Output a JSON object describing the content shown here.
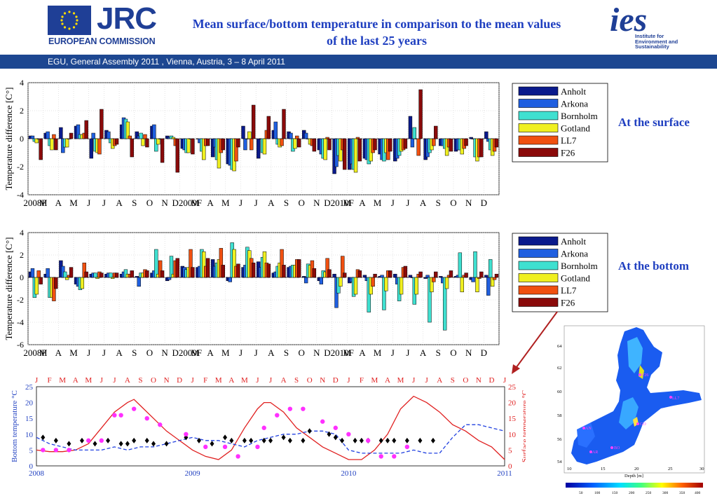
{
  "header": {
    "jrc_logo_text": "JRC",
    "jrc_subtext": "EUROPEAN COMMISSION",
    "title_line1": "Mean surface/bottom temperature in comparison to the mean values",
    "title_line2": "of the last 25 years",
    "ies_logo_text": "ies",
    "ies_subtext": [
      "Institute for",
      "Environment and",
      "Sustainability"
    ],
    "banner": "EGU, General Assembly 2011 , Vienna, Austria, 3 – 8 April 2011"
  },
  "labels": {
    "surface": "At the surface",
    "bottom": "At the bottom"
  },
  "colors": {
    "banner": "#1d4791",
    "title": "#1f3fc0",
    "series": [
      "#0a1a8c",
      "#1f5fe0",
      "#3fe0d0",
      "#f0f020",
      "#f05010",
      "#8a0a0a"
    ]
  },
  "chart_data": [
    {
      "type": "bar",
      "ylabel": "Temperature difference [C°]",
      "ylim": [
        -4,
        4
      ],
      "yticks": [
        -4,
        -2,
        0,
        2,
        4
      ],
      "categories": [
        "2008F",
        "M",
        "A",
        "M",
        "J",
        "J",
        "A",
        "S",
        "O",
        "N",
        "D2009F",
        "M",
        "A",
        "M",
        "J",
        "J",
        "A",
        "S",
        "O",
        "N",
        "D2010F",
        "M",
        "A",
        "M",
        "J",
        "J",
        "A",
        "S",
        "O",
        "N",
        "D"
      ],
      "grid": true,
      "legend_position": "right",
      "series": [
        {
          "name": "Anholt",
          "values": [
            0.2,
            0.4,
            0.8,
            0.9,
            -1.4,
            0.6,
            1.0,
            0.5,
            0.9,
            0.2,
            -0.7,
            0.0,
            -1.3,
            -1.8,
            0.9,
            -1.4,
            0.6,
            0.5,
            0.6,
            -0.8,
            -2.5,
            -2.2,
            -1.4,
            -1.1,
            -1.6,
            1.6,
            -1.5,
            -0.5,
            -0.9,
            0.1,
            0.5
          ]
        },
        {
          "name": "Arkona",
          "values": [
            0.2,
            0.5,
            -1.0,
            1.0,
            0.4,
            0.5,
            1.5,
            0.2,
            1.0,
            0.1,
            -0.8,
            -0.3,
            -0.6,
            -1.9,
            -0.8,
            0.0,
            1.2,
            0.4,
            0.4,
            -1.1,
            -2.0,
            -1.8,
            -1.5,
            -1.5,
            -1.4,
            -0.6,
            -1.3,
            -0.5,
            -0.8,
            0.0,
            -0.2
          ]
        },
        {
          "name": "Bornholm",
          "values": [
            -0.2,
            -0.5,
            -0.6,
            0.3,
            -0.9,
            -0.3,
            1.4,
            0.4,
            -0.9,
            0.2,
            -1.0,
            -0.9,
            -1.5,
            -2.2,
            0.0,
            -1.0,
            -0.4,
            -0.9,
            0.0,
            -1.4,
            -1.2,
            -2.2,
            -1.8,
            -1.6,
            -1.2,
            0.8,
            -1.0,
            -0.7,
            -0.8,
            -1.3,
            -0.8
          ]
        },
        {
          "name": "Gotland",
          "values": [
            -0.3,
            -0.8,
            -0.6,
            0.3,
            -1.0,
            -0.7,
            1.2,
            -0.5,
            -0.4,
            0.1,
            -1.0,
            -1.5,
            -2.1,
            -2.3,
            0.5,
            -1.1,
            -0.6,
            -0.7,
            -0.4,
            -1.5,
            -1.6,
            -2.4,
            -1.6,
            -1.0,
            -0.9,
            0.0,
            -0.8,
            -1.2,
            -1.1,
            -1.6,
            -1.2
          ]
        },
        {
          "name": "LL7",
          "values": [
            0.0,
            0.3,
            0.0,
            0.4,
            -1.1,
            -0.5,
            0.2,
            0.3,
            0.0,
            -0.5,
            0.0,
            -0.5,
            -1.0,
            -1.6,
            -0.8,
            0.6,
            -0.5,
            0.2,
            -0.5,
            0.1,
            -0.8,
            0.1,
            -1.0,
            -1.5,
            -0.8,
            -1.2,
            -0.5,
            -0.6,
            -0.7,
            -1.3,
            -0.9
          ]
        },
        {
          "name": "F26",
          "values": [
            -1.5,
            -0.8,
            0.4,
            1.3,
            2.1,
            -0.4,
            -1.3,
            -0.6,
            -1.7,
            -2.4,
            -1.1,
            -0.5,
            -0.8,
            -0.6,
            2.4,
            1.6,
            2.1,
            -0.6,
            -0.9,
            -0.8,
            -2.2,
            -1.6,
            -0.8,
            -0.9,
            -0.7,
            3.5,
            0.9,
            -0.9,
            -0.5,
            -1.3,
            -0.6
          ]
        }
      ]
    },
    {
      "type": "bar",
      "ylabel": "Temperature difference [C°]",
      "ylim": [
        -6,
        4
      ],
      "yticks": [
        -6,
        -4,
        -2,
        0,
        2,
        4
      ],
      "categories": [
        "2008F",
        "M",
        "A",
        "M",
        "J",
        "J",
        "A",
        "S",
        "O",
        "N",
        "D2009F",
        "M",
        "A",
        "M",
        "J",
        "J",
        "A",
        "S",
        "O",
        "N",
        "D2010F",
        "M",
        "A",
        "M",
        "J",
        "J",
        "A",
        "S",
        "O",
        "N",
        "D"
      ],
      "grid": true,
      "legend_position": "right",
      "series": [
        {
          "name": "Anholt",
          "values": [
            0.5,
            0.3,
            1.5,
            -0.6,
            0.3,
            0.3,
            0.3,
            0.1,
            0.4,
            -0.3,
            1.0,
            0.9,
            1.6,
            -0.3,
            0.9,
            1.4,
            0.4,
            0.9,
            0.1,
            -0.3,
            0.3,
            -0.5,
            0.2,
            0.1,
            0.3,
            0.2,
            -0.1,
            0.1,
            0.1,
            -0.2,
            0.2
          ]
        },
        {
          "name": "Arkona",
          "values": [
            0.8,
            0.8,
            1.0,
            -0.8,
            0.4,
            0.4,
            0.5,
            -0.8,
            0.6,
            -0.2,
            0.9,
            1.0,
            1.0,
            -0.4,
            1.1,
            0.9,
            0.5,
            1.0,
            -0.5,
            -0.6,
            -2.7,
            -0.4,
            -0.3,
            0.2,
            -0.6,
            0.0,
            0.2,
            -0.5,
            0.2,
            -0.4,
            -1.6
          ]
        },
        {
          "name": "Bornholm",
          "values": [
            -1.8,
            -1.8,
            0.5,
            -1.1,
            0.4,
            0.4,
            0.7,
            0.4,
            2.5,
            1.9,
            0.7,
            2.5,
            1.3,
            3.1,
            2.7,
            1.8,
            1.0,
            1.1,
            1.2,
            0.6,
            -1.4,
            -1.7,
            -3.1,
            -2.9,
            -2.1,
            -2.4,
            -4.0,
            -4.7,
            2.2,
            2.3,
            1.6
          ]
        },
        {
          "name": "Gotland",
          "values": [
            -1.5,
            -1.8,
            -0.2,
            -1.0,
            -0.1,
            -0.1,
            0.3,
            0.4,
            0.3,
            0.3,
            0.9,
            2.3,
            1.6,
            2.5,
            2.4,
            2.3,
            1.3,
            1.1,
            1.1,
            0.5,
            -0.8,
            -1.5,
            -1.5,
            -1.2,
            -1.5,
            -1.5,
            -1.3,
            -1.0,
            -1.3,
            -1.3,
            -0.8
          ]
        },
        {
          "name": "LL7",
          "values": [
            0.6,
            -2.1,
            0.2,
            1.3,
            0.5,
            0.4,
            0.3,
            0.7,
            1.5,
            1.5,
            2.5,
            1.0,
            2.6,
            1.0,
            1.7,
            1.3,
            2.5,
            1.6,
            1.5,
            1.7,
            1.9,
            0.7,
            -0.8,
            0.6,
            0.9,
            0.3,
            -0.4,
            0.2,
            0.2,
            -0.1,
            -0.2
          ]
        },
        {
          "name": "F26",
          "values": [
            -0.6,
            -1.0,
            0.9,
            0.5,
            0.4,
            0.4,
            0.6,
            0.6,
            0.6,
            1.7,
            0.9,
            1.7,
            1.1,
            1.2,
            1.3,
            1.2,
            1.1,
            1.6,
            0.8,
            0.7,
            0.4,
            0.6,
            0.3,
            0.6,
            1.0,
            0.5,
            0.5,
            0.6,
            0.4,
            0.5,
            0.3
          ]
        }
      ]
    },
    {
      "type": "line",
      "ylabel_left": "Bottom temperature °C",
      "ylabel_right": "Surface temperature °C",
      "ylim": [
        0,
        25
      ],
      "yticks": [
        0,
        5,
        10,
        15,
        20,
        25
      ],
      "x_year_labels": [
        "2008",
        "2009",
        "2010",
        "2011"
      ],
      "x_month_labels": [
        "J",
        "F",
        "M",
        "A",
        "M",
        "J",
        "J",
        "A",
        "S",
        "O",
        "N",
        "D",
        "J",
        "F",
        "M",
        "A",
        "M",
        "J",
        "J",
        "A",
        "S",
        "O",
        "N",
        "D",
        "J",
        "F",
        "M",
        "A",
        "M",
        "J",
        "J",
        "A",
        "S",
        "O",
        "N",
        "D",
        "J"
      ],
      "grid": false,
      "series": [
        {
          "name": "surface (red solid)",
          "x_months": [
            0,
            1,
            2,
            3,
            4,
            5,
            6,
            7,
            7.5,
            8,
            9,
            10,
            11,
            12,
            13,
            14,
            15,
            16,
            17,
            17.5,
            18,
            19,
            20,
            21,
            22,
            23,
            24,
            25,
            26,
            27,
            28,
            29,
            30,
            31,
            32,
            33,
            34,
            35,
            36
          ],
          "values": [
            5,
            4.5,
            4.5,
            5,
            7,
            12,
            17,
            20,
            21,
            19,
            15,
            11,
            8,
            5,
            3,
            2,
            5,
            12,
            18,
            20,
            20,
            17,
            12,
            9,
            6,
            4,
            2,
            2,
            5,
            10,
            18,
            22,
            20,
            17,
            13,
            11,
            8,
            6,
            2
          ]
        },
        {
          "name": "bottom (blue dashed)",
          "x_months": [
            0,
            1,
            2,
            3,
            4,
            5,
            6,
            7,
            8,
            9,
            10,
            11,
            12,
            13,
            14,
            15,
            16,
            17,
            18,
            19,
            20,
            21,
            22,
            23,
            24,
            25,
            26,
            27,
            28,
            29,
            30,
            31,
            32,
            33,
            34,
            35,
            36
          ],
          "values": [
            9,
            7,
            6,
            5,
            5,
            5,
            6,
            5,
            6,
            6,
            7,
            8,
            9,
            8,
            8,
            7,
            6,
            8,
            9,
            10,
            10,
            11,
            11,
            10,
            5,
            4,
            4,
            4,
            4,
            5,
            4,
            4,
            9,
            13,
            13,
            12,
            11
          ]
        },
        {
          "name": "bottom observed (black diamonds)",
          "x_months": [
            0.5,
            1.5,
            2.5,
            3.5,
            4.5,
            5.5,
            6.5,
            7,
            7.5,
            8.5,
            9,
            10,
            11.5,
            12.5,
            13.5,
            14.5,
            15,
            16,
            16.5,
            17.5,
            18,
            19,
            19.5,
            20.5,
            21,
            22.5,
            23,
            23.5,
            24.5,
            25,
            25.5,
            26.5,
            27,
            27.5,
            28.5,
            29.5,
            30.5
          ],
          "values": [
            9,
            8,
            7,
            8,
            7,
            8,
            7,
            7,
            8,
            8,
            7,
            7,
            9,
            8,
            7,
            9,
            8,
            8,
            8,
            8,
            8,
            9,
            8,
            8,
            11,
            10,
            9,
            8,
            8,
            8,
            8,
            8,
            8,
            8,
            8,
            8,
            8
          ]
        },
        {
          "name": "surface observed (magenta dots)",
          "x_months": [
            0.5,
            1.5,
            2.5,
            4,
            5,
            6,
            6.5,
            7.5,
            8.5,
            9.5,
            11.5,
            13,
            14.5,
            15.5,
            17,
            17.5,
            18.5,
            19.5,
            20.5,
            22,
            23,
            24,
            25.5,
            26.5,
            27.5,
            28.5
          ],
          "values": [
            5,
            5,
            5,
            8,
            8,
            16,
            16,
            18,
            15,
            13,
            10,
            6,
            6,
            3,
            6,
            12,
            16,
            18,
            18,
            14,
            12,
            10,
            8,
            3,
            3,
            6
          ]
        }
      ]
    }
  ],
  "map": {
    "y_ticks": [
      "54",
      "56",
      "58",
      "60",
      "62",
      "64"
    ],
    "x_ticks": [
      "10",
      "15",
      "20",
      "25",
      "30"
    ],
    "xlabel": "Depth [m]",
    "colorbar_ticks": [
      "50",
      "100",
      "150",
      "200",
      "250",
      "300",
      "350",
      "400"
    ],
    "station_labels": [
      "F26",
      "LL7",
      "GO",
      "BO",
      "AN",
      "AR"
    ]
  }
}
